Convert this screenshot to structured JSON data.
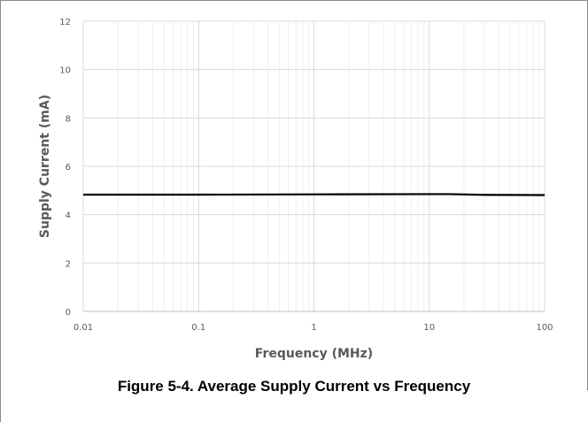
{
  "caption": "Figure 5-4. Average Supply Current vs Frequency",
  "chart_data": {
    "type": "line",
    "xscale": "log",
    "xlabel": "Frequency (MHz)",
    "ylabel": "Supply Current (mA)",
    "xlim": [
      0.01,
      100
    ],
    "ylim": [
      0,
      12
    ],
    "x_ticks": [
      0.01,
      0.1,
      1,
      10,
      100
    ],
    "x_tick_labels": [
      "0.01",
      "0.1",
      "1",
      "10",
      "100"
    ],
    "y_ticks": [
      0,
      2,
      4,
      6,
      8,
      10,
      12
    ],
    "y_tick_labels": [
      "0",
      "2",
      "4",
      "6",
      "8",
      "10",
      "12"
    ],
    "grid": true,
    "series": [
      {
        "color": "#000000",
        "x": [
          0.01,
          0.1,
          1,
          10,
          15,
          30,
          100
        ],
        "y": [
          4.83,
          4.83,
          4.84,
          4.85,
          4.85,
          4.82,
          4.81
        ]
      }
    ]
  }
}
